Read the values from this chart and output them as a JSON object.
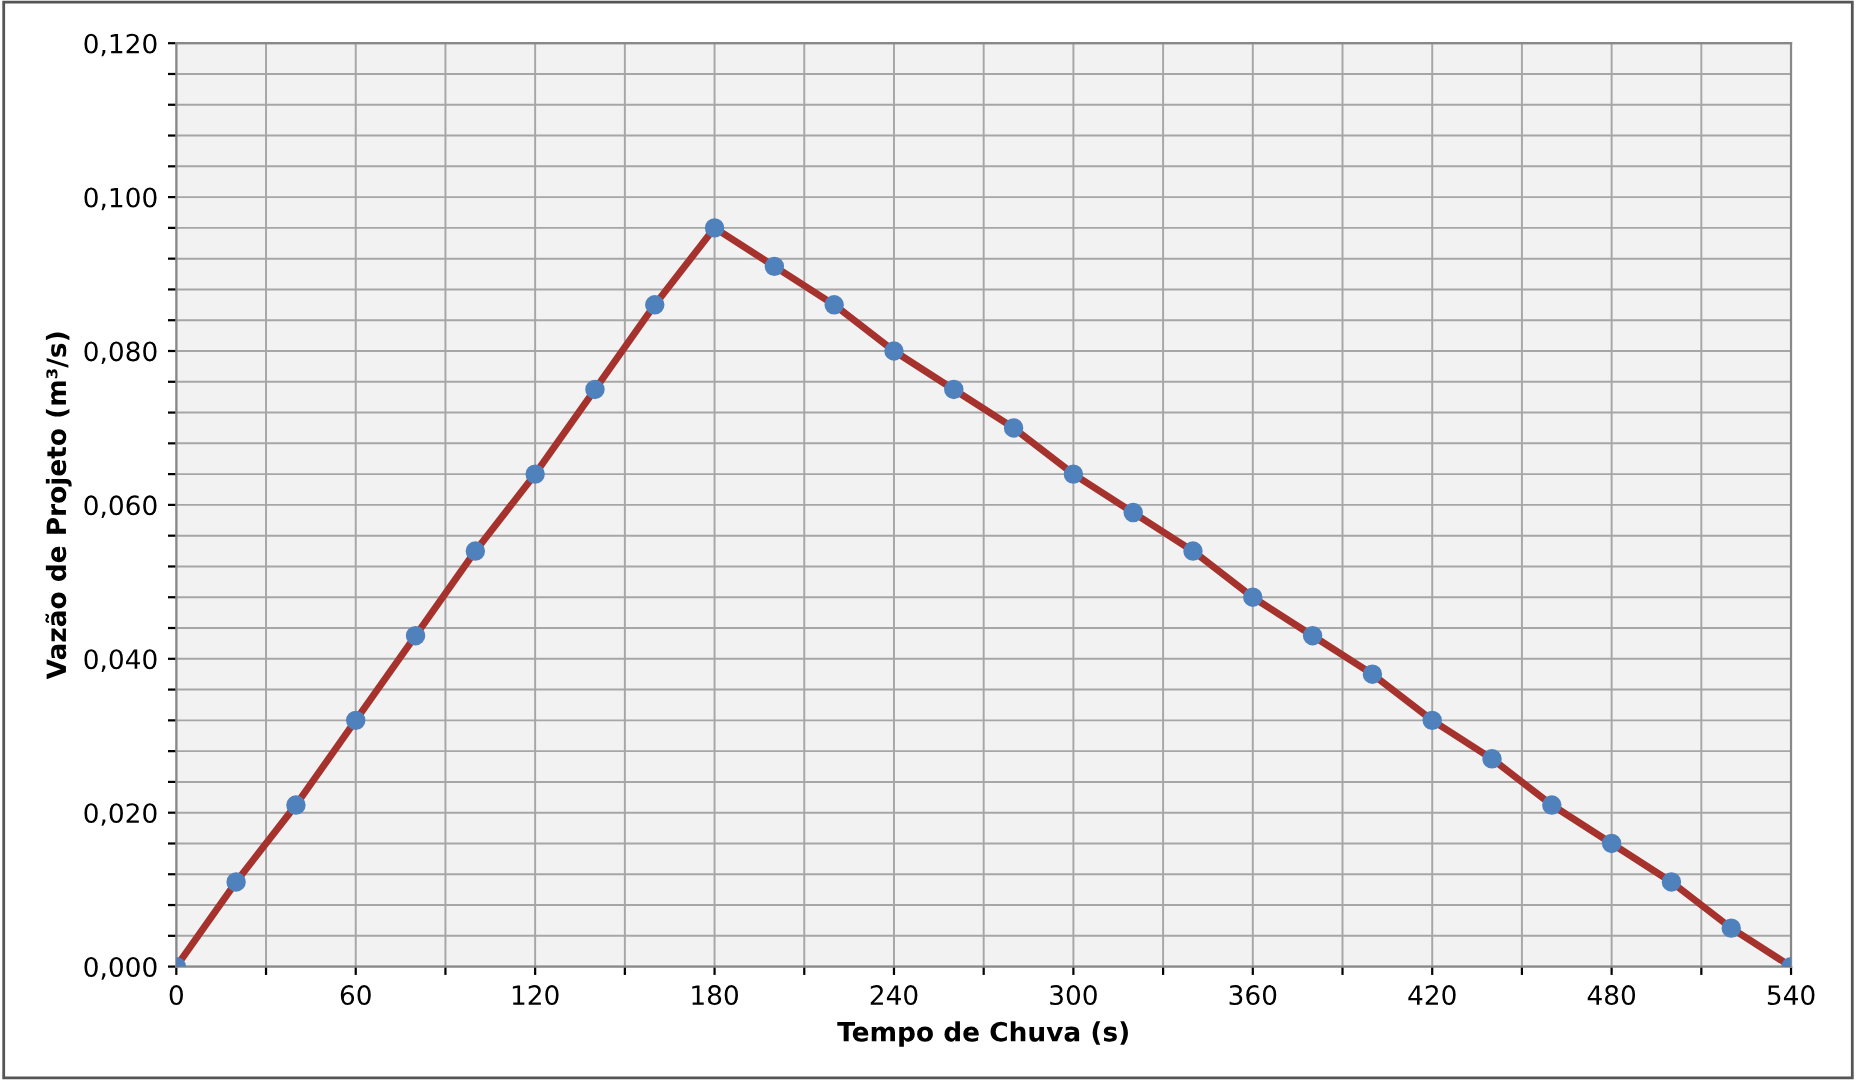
{
  "chart_data": {
    "type": "line",
    "xlabel": "Tempo de Chuva (s)",
    "ylabel": "Vazão de Projeto (m³/s)",
    "x": [
      0,
      20,
      40,
      60,
      80,
      100,
      120,
      140,
      160,
      180,
      200,
      220,
      240,
      260,
      280,
      300,
      320,
      340,
      360,
      380,
      400,
      420,
      440,
      460,
      480,
      500,
      520,
      540
    ],
    "series": [
      {
        "color": "#a5322c",
        "colors": [
          "#4f81bd",
          "#4f81bd",
          "#4f81bd",
          "#4f81bd",
          "#4f81bd",
          "#4f81bd",
          "#4f81bd",
          "#4f81bd",
          "#4f81bd",
          "#4f81bd",
          "#4f81bd",
          "#4f81bd",
          "#4f81bd",
          "#4f81bd",
          "#4f81bd",
          "#4f81bd",
          "#4f81bd",
          "#4f81bd",
          "#4f81bd",
          "#4f81bd",
          "#4f81bd",
          "#4f81bd",
          "#4f81bd",
          "#4f81bd",
          "#4f81bd",
          "#4f81bd",
          "#4f81bd",
          "#4f81bd"
        ],
        "values": [
          0,
          0.011,
          0.021,
          0.032,
          0.043,
          0.054,
          0.064,
          0.075,
          0.086,
          0.096,
          0.091,
          0.086,
          0.08,
          0.075,
          0.07,
          0.064,
          0.059,
          0.054,
          0.048,
          0.043,
          0.038,
          0.032,
          0.027,
          0.021,
          0.016,
          0.011,
          0.005,
          0
        ]
      }
    ],
    "marker": "circle",
    "line_style": "solid",
    "grid": true,
    "legend": false,
    "xlim": [
      0,
      540
    ],
    "xticks": [
      0,
      {
        "value": 30,
        "label": null
      },
      60,
      {
        "value": 90,
        "label": null
      },
      120,
      {
        "value": 150,
        "label": null
      },
      180,
      {
        "value": 210,
        "label": null
      },
      240,
      {
        "value": 270,
        "label": null
      },
      300,
      {
        "value": 330,
        "label": null
      },
      360,
      {
        "value": 390,
        "label": null
      },
      420,
      {
        "value": 450,
        "label": null
      },
      480,
      {
        "value": 510,
        "label": null
      },
      540
    ],
    "ylim": [
      0,
      0.12
    ],
    "yticks": [
      {
        "value": 0,
        "label": "0,000"
      },
      {
        "value": 0.004,
        "label": null
      },
      {
        "value": 0.008,
        "label": null
      },
      {
        "value": 0.012,
        "label": null
      },
      {
        "value": 0.016,
        "label": null
      },
      {
        "value": 0.02,
        "label": "0,020"
      },
      {
        "value": 0.024,
        "label": null
      },
      {
        "value": 0.028,
        "label": null
      },
      {
        "value": 0.032,
        "label": null
      },
      {
        "value": 0.036,
        "label": null
      },
      {
        "value": 0.04,
        "label": "0,040"
      },
      {
        "value": 0.044,
        "label": null
      },
      {
        "value": 0.048,
        "label": null
      },
      {
        "value": 0.052,
        "label": null
      },
      {
        "value": 0.056,
        "label": null
      },
      {
        "value": 0.06,
        "label": "0,060"
      },
      {
        "value": 0.064,
        "label": null
      },
      {
        "value": 0.068,
        "label": null
      },
      {
        "value": 0.072,
        "label": null
      },
      {
        "value": 0.076,
        "label": null
      },
      {
        "value": 0.08,
        "label": "0,080"
      },
      {
        "value": 0.084,
        "label": null
      },
      {
        "value": 0.088,
        "label": null
      },
      {
        "value": 0.092,
        "label": null
      },
      {
        "value": 0.096,
        "label": null
      },
      {
        "value": 0.1,
        "label": "0,100"
      },
      {
        "value": 0.104,
        "label": null
      },
      {
        "value": 0.108,
        "label": null
      },
      {
        "value": 0.112,
        "label": null
      },
      {
        "value": 0.116,
        "label": null
      },
      {
        "value": 0.12,
        "label": "0,120"
      }
    ]
  }
}
